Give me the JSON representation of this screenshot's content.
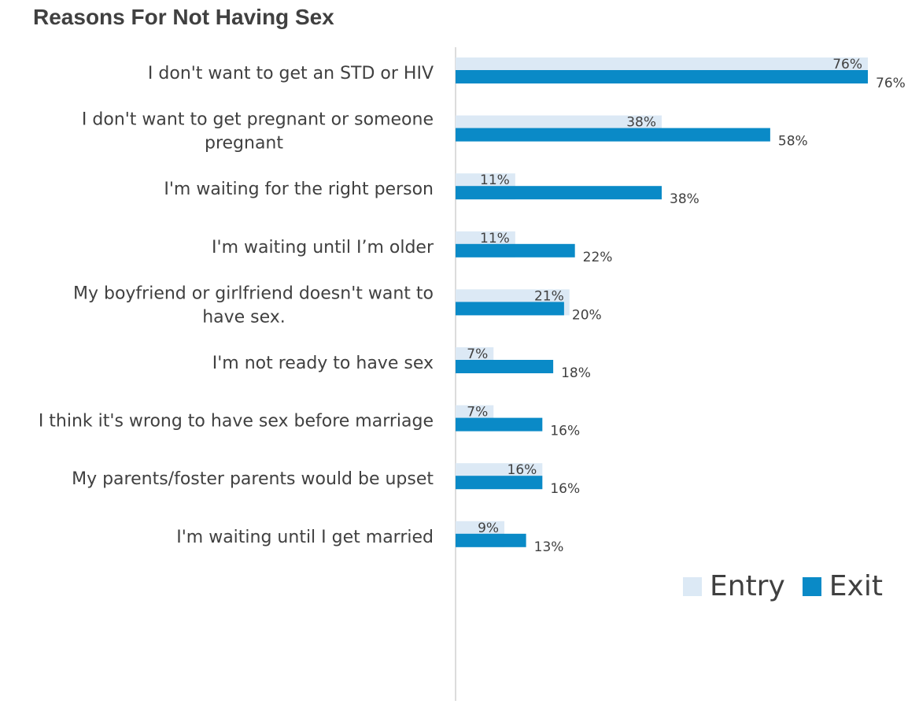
{
  "chart_data": {
    "type": "bar",
    "orientation": "horizontal",
    "title": "Reasons For Not Having Sex",
    "categories": [
      [
        "I don't want to get an STD or HIV"
      ],
      [
        "I don't want to get pregnant or someone",
        "pregnant"
      ],
      [
        "I'm waiting for the right person"
      ],
      [
        "I'm waiting until I’m older"
      ],
      [
        "My boyfriend or girlfriend doesn't want to",
        "have sex."
      ],
      [
        "I'm not ready to have sex"
      ],
      [
        "I think it's wrong to have sex before marriage"
      ],
      [
        "My parents/foster parents would be upset"
      ],
      [
        "I'm waiting until I get married"
      ]
    ],
    "series": [
      {
        "name": "Entry",
        "color": "#dce9f5",
        "values": [
          76,
          38,
          11,
          11,
          21,
          7,
          7,
          16,
          9
        ],
        "labels": [
          "76%",
          "38%",
          "11%",
          "11%",
          "21%",
          "7%",
          "7%",
          "16%",
          "9%"
        ]
      },
      {
        "name": "Exit",
        "color": "#0a8ac7",
        "values": [
          76,
          58,
          38,
          22,
          20,
          18,
          16,
          16,
          13
        ],
        "labels": [
          "76%",
          "58%",
          "38%",
          "22%",
          "20%",
          "18%",
          "16%",
          "16%",
          "13%"
        ]
      }
    ],
    "xlim": [
      0,
      76
    ],
    "grid": false,
    "legend_position": "bottom-right"
  }
}
